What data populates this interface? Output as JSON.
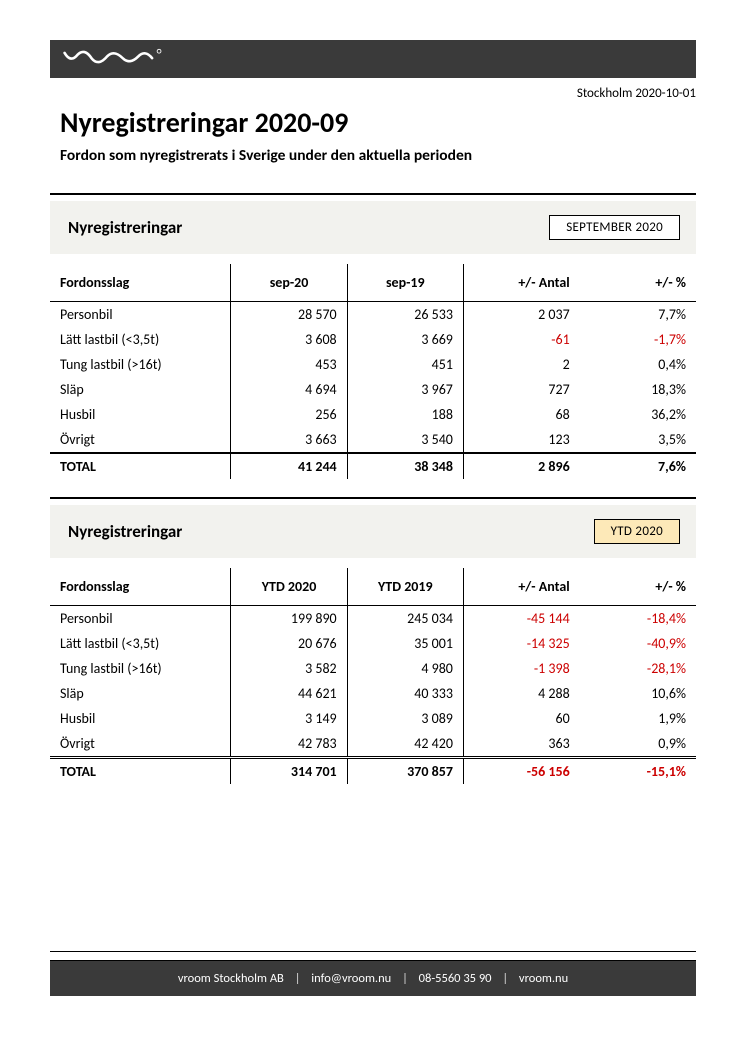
{
  "colors": {
    "bar_bg": "#3a3a3a",
    "section_bg": "#f2f2ee",
    "ytd_badge_bg": "#fde9b8",
    "negative": "#cc0000",
    "text": "#000000",
    "page_bg": "#ffffff"
  },
  "fonts": {
    "title_size_pt": 21,
    "subtitle_size_pt": 12,
    "section_title_size_pt": 13,
    "table_size_pt": 10.5,
    "footer_size_pt": 9.5
  },
  "header": {
    "logo_text": "vroom",
    "date_location": "Stockholm 2020-10-01",
    "title": "Nyregistreringar 2020-09",
    "subtitle": "Fordon som nyregistrerats i Sverige under den aktuella perioden"
  },
  "section_a": {
    "title": "Nyregistreringar",
    "period_label": "SEPTEMBER 2020",
    "columns": [
      "Fordonsslag",
      "sep-20",
      "sep-19",
      "+/- Antal",
      "+/- %"
    ],
    "rows": [
      {
        "label": "Personbil",
        "c1": "28 570",
        "c2": "26 533",
        "d": "2 037",
        "p": "7,7%",
        "neg": false
      },
      {
        "label": "Lätt lastbil (<3,5t)",
        "c1": "3 608",
        "c2": "3 669",
        "d": "-61",
        "p": "-1,7%",
        "neg": true
      },
      {
        "label": "Tung lastbil (>16t)",
        "c1": "453",
        "c2": "451",
        "d": "2",
        "p": "0,4%",
        "neg": false
      },
      {
        "label": "Släp",
        "c1": "4 694",
        "c2": "3 967",
        "d": "727",
        "p": "18,3%",
        "neg": false
      },
      {
        "label": "Husbil",
        "c1": "256",
        "c2": "188",
        "d": "68",
        "p": "36,2%",
        "neg": false
      },
      {
        "label": "Övrigt",
        "c1": "3 663",
        "c2": "3 540",
        "d": "123",
        "p": "3,5%",
        "neg": false
      }
    ],
    "total": {
      "label": "TOTAL",
      "c1": "41 244",
      "c2": "38 348",
      "d": "2 896",
      "p": "7,6%",
      "neg": false
    }
  },
  "section_b": {
    "title": "Nyregistreringar",
    "period_label": "YTD 2020",
    "columns": [
      "Fordonsslag",
      "YTD 2020",
      "YTD 2019",
      "+/- Antal",
      "+/- %"
    ],
    "rows": [
      {
        "label": "Personbil",
        "c1": "199 890",
        "c2": "245 034",
        "d": "-45 144",
        "p": "-18,4%",
        "neg": true
      },
      {
        "label": "Lätt lastbil (<3,5t)",
        "c1": "20 676",
        "c2": "35 001",
        "d": "-14 325",
        "p": "-40,9%",
        "neg": true
      },
      {
        "label": "Tung lastbil (>16t)",
        "c1": "3 582",
        "c2": "4 980",
        "d": "-1 398",
        "p": "-28,1%",
        "neg": true
      },
      {
        "label": "Släp",
        "c1": "44 621",
        "c2": "40 333",
        "d": "4 288",
        "p": "10,6%",
        "neg": false
      },
      {
        "label": "Husbil",
        "c1": "3 149",
        "c2": "3 089",
        "d": "60",
        "p": "1,9%",
        "neg": false
      },
      {
        "label": "Övrigt",
        "c1": "42 783",
        "c2": "42 420",
        "d": "363",
        "p": "0,9%",
        "neg": false
      }
    ],
    "total": {
      "label": "TOTAL",
      "c1": "314 701",
      "c2": "370 857",
      "d": "-56 156",
      "p": "-15,1%",
      "neg": true
    }
  },
  "footer": {
    "company": "vroom Stockholm AB",
    "email": "info@vroom.nu",
    "phone": "08-5560 35 90",
    "web": "vroom.nu",
    "separator": "|"
  }
}
